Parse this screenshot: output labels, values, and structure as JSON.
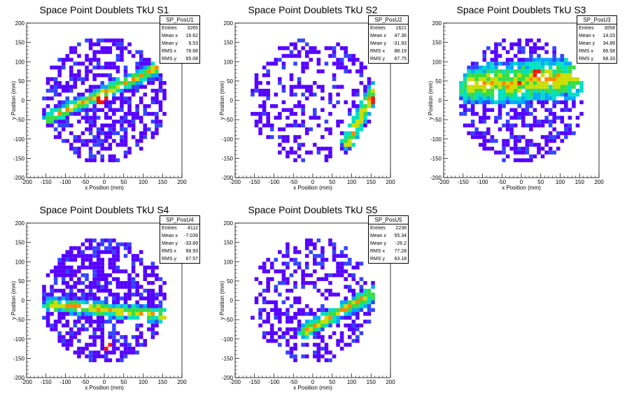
{
  "panels": [
    {
      "title": "Space Point Doublets TkU S1",
      "xlabel": "x Position (mm)",
      "ylabel": "y Position (mm)",
      "stats": {
        "name": "SP_PosU1",
        "rows": [
          {
            "label": "Entries",
            "value": "3265"
          },
          {
            "label": "Mean x",
            "value": "16.62"
          },
          {
            "label": "Mean y",
            "value": "9.53"
          },
          {
            "label": "RMS x",
            "value": "78.68"
          },
          {
            "label": "RMS y",
            "value": "65.08"
          }
        ]
      }
    },
    {
      "title": "Space Point Doublets TkU S2",
      "xlabel": "x Position (mm)",
      "ylabel": "y Position (mm)",
      "stats": {
        "name": "SP_PosU2",
        "rows": [
          {
            "label": "Entries",
            "value": "1621"
          },
          {
            "label": "Mean x",
            "value": "47.36"
          },
          {
            "label": "Mean y",
            "value": "-31.93"
          },
          {
            "label": "RMS x",
            "value": "88.19"
          },
          {
            "label": "RMS y",
            "value": "67.75"
          }
        ]
      }
    },
    {
      "title": "Space Point Doublets TkU S3",
      "xlabel": "x Position (mm)",
      "ylabel": "y Position (mm)",
      "stats": {
        "name": "SP_PosU3",
        "rows": [
          {
            "label": "Entries",
            "value": "3058"
          },
          {
            "label": "Mean x",
            "value": "14.03"
          },
          {
            "label": "Mean y",
            "value": "34.89"
          },
          {
            "label": "RMS x",
            "value": "66.58"
          },
          {
            "label": "RMS y",
            "value": "68.33"
          }
        ]
      }
    },
    {
      "title": "Space Point Doublets TkU S4",
      "xlabel": "x Position (mm)",
      "ylabel": "y Position (mm)",
      "stats": {
        "name": "SP_PosU4",
        "rows": [
          {
            "label": "Entries",
            "value": "4112"
          },
          {
            "label": "Mean x",
            "value": "-7.039"
          },
          {
            "label": "Mean y",
            "value": "-33.89"
          },
          {
            "label": "RMS x",
            "value": "68.93"
          },
          {
            "label": "RMS y",
            "value": "67.57"
          }
        ]
      }
    },
    {
      "title": "Space Point Doublets TkU S5",
      "xlabel": "x Position (mm)",
      "ylabel": "y Position (mm)",
      "stats": {
        "name": "SP_PosU5",
        "rows": [
          {
            "label": "Entries",
            "value": "2236"
          },
          {
            "label": "Mean x",
            "value": "55.34"
          },
          {
            "label": "Mean y",
            "value": "-26.2"
          },
          {
            "label": "RMS x",
            "value": "77.28"
          },
          {
            "label": "RMS y",
            "value": "63.18"
          }
        ]
      }
    }
  ],
  "chart_data": [
    {
      "type": "heatmap",
      "title": "Space Point Doublets TkU S1",
      "xlabel": "x Position (mm)",
      "ylabel": "y Position (mm)",
      "xlim": [
        -200,
        200
      ],
      "ylim": [
        -200,
        200
      ],
      "x_ticks": [
        -200,
        -150,
        -100,
        -50,
        0,
        50,
        100,
        150,
        200
      ],
      "y_ticks": [
        -200,
        -150,
        -100,
        -50,
        0,
        50,
        100,
        150,
        200
      ],
      "entries": 3265,
      "mean_x": 16.62,
      "mean_y": 9.53,
      "rms_x": 78.68,
      "rms_y": 65.08,
      "pattern": {
        "density": 0.55,
        "band": {
          "x1": -140,
          "y1": -45,
          "x2": 140,
          "y2": 85,
          "width": 18
        },
        "hot": [
          [
            -10,
            0
          ],
          [
            0,
            5
          ]
        ]
      }
    },
    {
      "type": "heatmap",
      "title": "Space Point Doublets TkU S2",
      "xlabel": "x Position (mm)",
      "ylabel": "y Position (mm)",
      "xlim": [
        -200,
        200
      ],
      "ylim": [
        -200,
        200
      ],
      "x_ticks": [
        -200,
        -150,
        -100,
        -50,
        0,
        50,
        100,
        150,
        200
      ],
      "y_ticks": [
        -200,
        -150,
        -100,
        -50,
        0,
        50,
        100,
        150,
        200
      ],
      "entries": 1621,
      "mean_x": 47.36,
      "mean_y": -31.93,
      "rms_x": 88.19,
      "rms_y": 67.75,
      "pattern": {
        "density": 0.35,
        "band": {
          "x1": 90,
          "y1": -110,
          "x2": 160,
          "y2": 30,
          "width": 20
        },
        "hot": [
          [
            155,
            0
          ]
        ]
      }
    },
    {
      "type": "heatmap",
      "title": "Space Point Doublets TkU S3",
      "xlabel": "x Position (mm)",
      "ylabel": "y Position (mm)",
      "xlim": [
        -200,
        200
      ],
      "ylim": [
        -200,
        200
      ],
      "x_ticks": [
        -200,
        -150,
        -100,
        -50,
        0,
        50,
        100,
        150,
        200
      ],
      "y_ticks": [
        -200,
        -150,
        -100,
        -50,
        0,
        50,
        100,
        150,
        200
      ],
      "entries": 3058,
      "mean_x": 14.03,
      "mean_y": 34.89,
      "rms_x": 66.58,
      "rms_y": 68.33,
      "pattern": {
        "density": 0.5,
        "band": {
          "x1": -120,
          "y1": 40,
          "x2": 140,
          "y2": 60,
          "width": 55
        },
        "hot": [
          [
            -5,
            45
          ],
          [
            40,
            70
          ]
        ]
      }
    },
    {
      "type": "heatmap",
      "title": "Space Point Doublets TkU S4",
      "xlabel": "x Position (mm)",
      "ylabel": "y Position (mm)",
      "xlim": [
        -200,
        200
      ],
      "ylim": [
        -200,
        200
      ],
      "x_ticks": [
        -200,
        -150,
        -100,
        -50,
        0,
        50,
        100,
        150,
        200
      ],
      "y_ticks": [
        -200,
        -150,
        -100,
        -50,
        0,
        50,
        100,
        150,
        200
      ],
      "entries": 4112,
      "mean_x": -7.039,
      "mean_y": -33.89,
      "rms_x": 68.93,
      "rms_y": 67.57,
      "pattern": {
        "density": 0.6,
        "band": {
          "x1": -140,
          "y1": -10,
          "x2": 160,
          "y2": -40,
          "width": 20
        },
        "hot": [
          [
            10,
            -120
          ]
        ]
      }
    },
    {
      "type": "heatmap",
      "title": "Space Point Doublets TkU S5",
      "xlabel": "x Position (mm)",
      "ylabel": "y Position (mm)",
      "xlim": [
        -200,
        200
      ],
      "ylim": [
        -200,
        200
      ],
      "x_ticks": [
        -200,
        -150,
        -100,
        -50,
        0,
        50,
        100,
        150,
        200
      ],
      "y_ticks": [
        -200,
        -150,
        -100,
        -50,
        0,
        50,
        100,
        150,
        200
      ],
      "entries": 2236,
      "mean_x": 55.34,
      "mean_y": -26.2,
      "rms_x": 77.28,
      "rms_y": 63.18,
      "pattern": {
        "density": 0.4,
        "band": {
          "x1": -20,
          "y1": -80,
          "x2": 160,
          "y2": 20,
          "width": 20
        },
        "hot": [
          [
            155,
            -55
          ]
        ]
      }
    }
  ],
  "colors": {
    "palette": [
      "#5500ff",
      "#3344ff",
      "#00a8ff",
      "#00e0c0",
      "#33dd44",
      "#ccdd00",
      "#ff8800",
      "#ff1100"
    ],
    "axis": "#000000",
    "stats_border": "#000000"
  }
}
